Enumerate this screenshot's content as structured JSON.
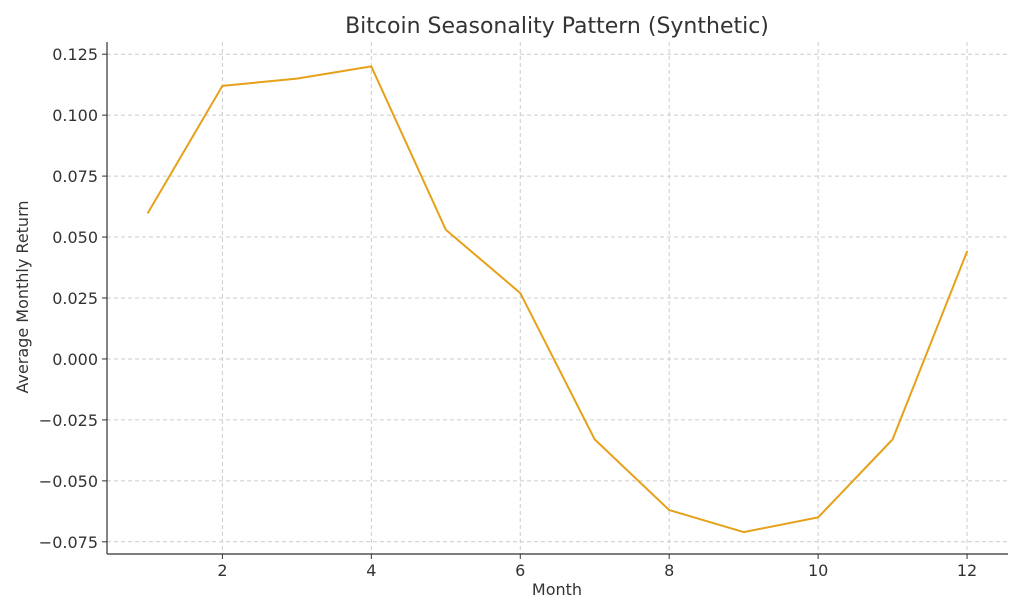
{
  "chart_data": {
    "type": "line",
    "title": "Bitcoin Seasonality Pattern (Synthetic)",
    "xlabel": "Month",
    "ylabel": "Average Monthly Return",
    "xlim": [
      0.45,
      12.55
    ],
    "ylim": [
      -0.08,
      0.13
    ],
    "x_ticks": [
      2,
      4,
      6,
      8,
      10,
      12
    ],
    "x_tick_labels": [
      "2",
      "4",
      "6",
      "8",
      "10",
      "12"
    ],
    "y_ticks": [
      -0.075,
      -0.05,
      -0.025,
      0,
      0.025,
      0.05,
      0.075,
      0.1,
      0.125
    ],
    "y_tick_labels": [
      "−0.075",
      "−0.050",
      "−0.025",
      "0.000",
      "0.025",
      "0.050",
      "0.075",
      "0.100",
      "0.125"
    ],
    "grid": true,
    "colors": {
      "line": "#e6a11a"
    },
    "series": [
      {
        "x": [
          1,
          2,
          3,
          4,
          5,
          6,
          7,
          8,
          9,
          10,
          11,
          12
        ],
        "values": [
          0.06,
          0.112,
          0.115,
          0.12,
          0.053,
          0.027,
          -0.033,
          -0.062,
          -0.071,
          -0.065,
          -0.033,
          0.044
        ]
      }
    ]
  }
}
